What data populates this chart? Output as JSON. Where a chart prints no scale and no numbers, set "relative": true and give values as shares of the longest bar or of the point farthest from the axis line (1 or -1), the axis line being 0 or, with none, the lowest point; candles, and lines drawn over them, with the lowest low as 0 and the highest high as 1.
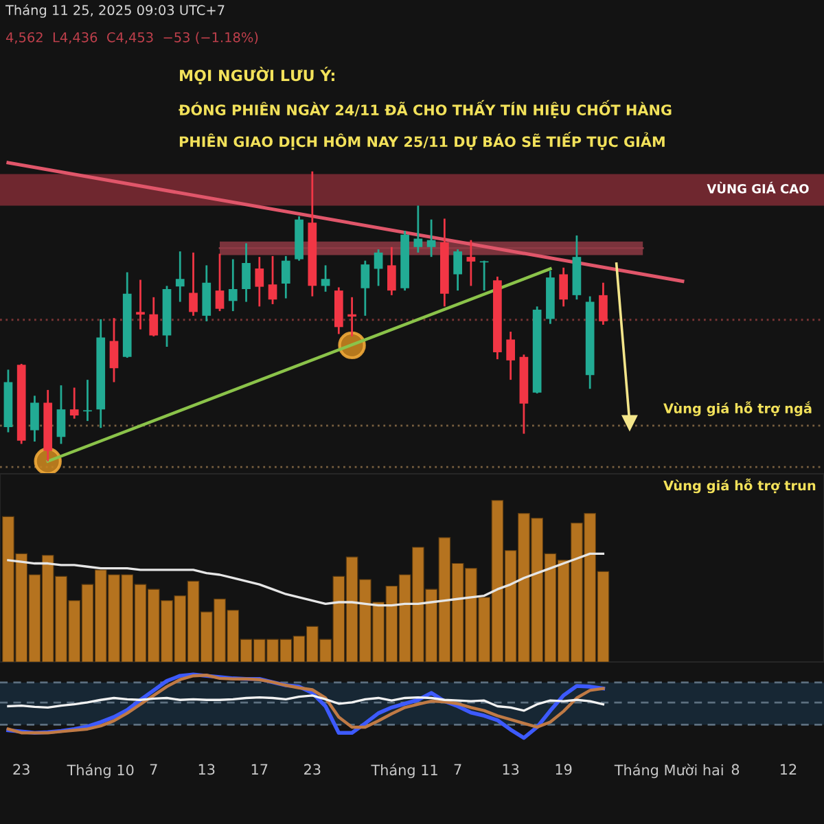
{
  "chart_data": [
    {
      "type": "candlestick",
      "title": "MỌI NGƯỜI LƯU Ý:",
      "subtitle": "ĐÓNG PHIÊN NGÀY 24/11 ĐÃ CHO THẤY TÍN HIỆU CHỐT HÀNG\nPHIÊN GIAO DỊCH HÔM NAY 25/11 DỰ BÁO SẼ TIẾP TỤC GIẢM",
      "annotations": [
        "Tháng 11 25, 2025 09:03 UTC+7",
        "4,562  L4,436  C4,453  −53 (−1.18%)"
      ],
      "relative": true,
      "tick_labels": false,
      "categories": [
        null,
        null,
        null,
        null,
        null,
        null,
        null,
        null,
        null,
        null,
        null,
        null,
        null,
        null,
        null,
        null,
        null,
        null,
        null,
        null,
        null,
        null,
        null,
        null,
        null,
        null,
        null,
        null,
        null,
        null,
        null,
        null,
        null,
        null,
        null,
        null,
        null,
        null,
        null,
        null,
        null,
        null,
        null,
        null,
        null,
        null,
        null,
        null,
        null,
        null,
        null,
        null,
        null,
        null,
        null,
        null,
        null,
        null,
        null,
        null
      ],
      "ohlc": [
        [
          0.118,
          0.316,
          0.1,
          0.273
        ],
        [
          0.333,
          0.336,
          0.06,
          0.071
        ],
        [
          0.107,
          0.226,
          0.068,
          0.202
        ],
        [
          0.202,
          0.246,
          0,
          0.036
        ],
        [
          0.084,
          0.262,
          0.06,
          0.179
        ],
        [
          0.179,
          0.254,
          0.147,
          0.158
        ],
        [
          0.172,
          0.281,
          0.139,
          0.175
        ],
        [
          0.179,
          0.49,
          0.115,
          0.427
        ],
        [
          0.415,
          0.494,
          0.273,
          0.321
        ],
        [
          0.36,
          0.652,
          0.357,
          0.578
        ],
        [
          0.515,
          0.626,
          0.455,
          0.506
        ],
        [
          0.507,
          0.566,
          0.431,
          0.434
        ],
        [
          0.434,
          0.605,
          0.395,
          0.594
        ],
        [
          0.603,
          0.724,
          0.55,
          0.629
        ],
        [
          0.581,
          0.72,
          0.502,
          0.515
        ],
        [
          0.502,
          0.676,
          0.483,
          0.616
        ],
        [
          0.589,
          0.716,
          0.518,
          0.526
        ],
        [
          0.553,
          0.697,
          0.518,
          0.594
        ],
        [
          0.594,
          0.752,
          0.55,
          0.684
        ],
        [
          0.665,
          0.705,
          0.534,
          0.602
        ],
        [
          0.61,
          0.708,
          0.542,
          0.558
        ],
        [
          0.613,
          0.708,
          0.562,
          0.692
        ],
        [
          0.697,
          0.845,
          0.692,
          0.834
        ],
        [
          0.823,
          1,
          0.569,
          0.605
        ],
        [
          0.605,
          0.676,
          0.585,
          0.629
        ],
        [
          0.589,
          0.6,
          0.439,
          0.463
        ],
        [
          0.507,
          0.566,
          0.431,
          0.499
        ],
        [
          0.597,
          0.692,
          0.502,
          0.679
        ],
        [
          0.664,
          0.731,
          0.605,
          0.72
        ],
        [
          0.676,
          0.739,
          0.573,
          0.589
        ],
        [
          0.597,
          0.795,
          0.589,
          0.782
        ],
        [
          0.739,
          0.882,
          0.72,
          0.768
        ],
        [
          0.739,
          0.834,
          0.705,
          0.763
        ],
        [
          0.755,
          0.837,
          0.534,
          0.578
        ],
        [
          0.645,
          0.731,
          0.589,
          0.724
        ],
        [
          0.705,
          0.763,
          0.605,
          0.689
        ],
        [
          0.686,
          0.692,
          0.589,
          0.689
        ],
        [
          0.624,
          0.637,
          0.352,
          0.376
        ],
        [
          0.42,
          0.447,
          0.281,
          0.348
        ],
        [
          0.36,
          0.368,
          0.095,
          0.199
        ],
        [
          0.237,
          0.534,
          0.234,
          0.523
        ],
        [
          0.491,
          0.657,
          0.474,
          0.634
        ],
        [
          0.645,
          0.668,
          0.534,
          0.558
        ],
        [
          0.573,
          0.779,
          0.558,
          0.705
        ],
        [
          0.297,
          0.569,
          0.25,
          0.55
        ],
        [
          0.573,
          0.616,
          0.471,
          0.483
        ],
        null,
        null,
        null,
        null,
        null,
        null,
        null,
        null,
        null,
        null,
        null,
        null,
        null,
        null
      ],
      "colors": [
        "#22ab94",
        "#f23645",
        "#22ab94",
        "#f23645",
        "#22ab94",
        "#f23645",
        "#22ab94",
        "#22ab94",
        "#f23645",
        "#22ab94",
        "#f23645",
        "#f23645",
        "#22ab94",
        "#22ab94",
        "#f23645",
        "#22ab94",
        "#f23645",
        "#22ab94",
        "#22ab94",
        "#f23645",
        "#f23645",
        "#22ab94",
        "#22ab94",
        "#f23645",
        "#22ab94",
        "#f23645",
        "#f23645",
        "#22ab94",
        "#22ab94",
        "#f23645",
        "#22ab94",
        "#22ab94",
        "#22ab94",
        "#f23645",
        "#22ab94",
        "#f23645",
        "#22ab94",
        "#f23645",
        "#f23645",
        "#f23645",
        "#22ab94",
        "#22ab94",
        "#f23645",
        "#22ab94",
        "#22ab94",
        "#f23645",
        null,
        null,
        null,
        null,
        null,
        null,
        null,
        null,
        null,
        null,
        null,
        null,
        null,
        null
      ],
      "bands": [
        {
          "axis": "y",
          "from": 0.882,
          "to": 0.991,
          "label": "VÙNG GIÁ CAO",
          "color": "#7a2a33"
        }
      ],
      "ref_lines": [
        {
          "axis": "y",
          "value": 0.488,
          "color": "#7a3434",
          "line_style": "dotted"
        },
        {
          "axis": "y",
          "value": 0.123,
          "label": "Vùng giá hỗ trợ ngắ",
          "color": "#7a6040",
          "line_style": "dotted"
        },
        {
          "axis": "y",
          "value": -0.02,
          "label": "Vùng giá hỗ trợ trun",
          "color": "#7a6040",
          "line_style": "dotted"
        }
      ],
      "series": [
        {
          "type": "line",
          "values": [
            null,
            null,
            null,
            null,
            null,
            null,
            null,
            null,
            null,
            null,
            null,
            null,
            null,
            null,
            null,
            null,
            0.735,
            null,
            null,
            null,
            null,
            null,
            null,
            null,
            null,
            null,
            null,
            null,
            null,
            null,
            null,
            null,
            null,
            null,
            null,
            null,
            null,
            null,
            null,
            null,
            null,
            null,
            null,
            null,
            null,
            null,
            null,
            null,
            0.735,
            null,
            null,
            null,
            null,
            null,
            null,
            null,
            null,
            null,
            null,
            null
          ],
          "upper": [
            null,
            null,
            null,
            null,
            null,
            null,
            null,
            null,
            null,
            null,
            null,
            null,
            null,
            null,
            null,
            null,
            0.758,
            null,
            null,
            null,
            null,
            null,
            null,
            null,
            null,
            null,
            null,
            null,
            null,
            null,
            null,
            null,
            null,
            null,
            null,
            null,
            null,
            null,
            null,
            null,
            null,
            null,
            null,
            null,
            null,
            null,
            null,
            null,
            0.758,
            null,
            null,
            null,
            null,
            null,
            null,
            null,
            null,
            null,
            null,
            null
          ],
          "lower": [
            null,
            null,
            null,
            null,
            null,
            null,
            null,
            null,
            null,
            null,
            null,
            null,
            null,
            null,
            null,
            null,
            0.711,
            null,
            null,
            null,
            null,
            null,
            null,
            null,
            null,
            null,
            null,
            null,
            null,
            null,
            null,
            null,
            null,
            null,
            null,
            null,
            null,
            null,
            null,
            null,
            null,
            null,
            null,
            null,
            null,
            null,
            null,
            null,
            0.711,
            null,
            null,
            null,
            null,
            null,
            null,
            null,
            null,
            null,
            null,
            null
          ],
          "color": "#8e3a44"
        },
        {
          "type": "line",
          "values": [
            1.03,
            null,
            null,
            null,
            null,
            null,
            null,
            null,
            null,
            null,
            null,
            null,
            null,
            null,
            null,
            null,
            null,
            null,
            null,
            null,
            null,
            null,
            null,
            null,
            null,
            null,
            null,
            null,
            null,
            null,
            null,
            null,
            null,
            null,
            null,
            null,
            null,
            null,
            null,
            null,
            null,
            null,
            null,
            null,
            null,
            null,
            null,
            null,
            null,
            null,
            null,
            0.621,
            null,
            null,
            null,
            null,
            null,
            null,
            null,
            null
          ],
          "color": "#e0566a"
        },
        {
          "type": "line",
          "values": [
            null,
            null,
            null,
            0,
            null,
            null,
            null,
            null,
            null,
            null,
            null,
            null,
            null,
            null,
            null,
            null,
            null,
            null,
            null,
            null,
            null,
            null,
            null,
            null,
            null,
            null,
            null,
            null,
            null,
            null,
            null,
            null,
            null,
            null,
            null,
            null,
            null,
            null,
            null,
            null,
            null,
            0.664,
            null,
            null,
            null,
            null,
            null,
            null,
            null,
            null,
            null,
            null,
            null,
            null,
            null,
            null,
            null,
            null,
            null,
            null
          ],
          "color": "#8bc34a"
        },
        {
          "type": "scatter",
          "values": [
            null,
            null,
            null,
            0,
            null,
            null,
            null,
            null,
            null,
            null,
            null,
            null,
            null,
            null,
            null,
            null,
            null,
            null,
            null,
            null,
            null,
            null,
            null,
            null,
            null,
            null,
            0.4,
            null,
            null,
            null,
            null,
            null,
            null,
            null,
            null,
            null,
            null,
            null,
            null,
            null,
            null,
            null,
            null,
            null,
            null,
            null,
            null,
            null,
            null,
            null,
            null,
            null,
            null,
            null,
            null,
            null,
            null,
            null,
            null,
            null
          ],
          "color": "#c8841f",
          "marker": "circle"
        },
        {
          "type": "line",
          "values": [
            null,
            null,
            null,
            null,
            null,
            null,
            null,
            null,
            null,
            null,
            null,
            null,
            null,
            null,
            null,
            null,
            null,
            null,
            null,
            null,
            null,
            null,
            null,
            null,
            null,
            null,
            null,
            null,
            null,
            null,
            null,
            null,
            null,
            null,
            null,
            null,
            null,
            null,
            null,
            null,
            null,
            null,
            null,
            null,
            null,
            null,
            0.682,
            0.133,
            null,
            null,
            null,
            null,
            null,
            null,
            null,
            null,
            null,
            null,
            null,
            null
          ],
          "color": "#f3e58a",
          "marker": "triangle"
        }
      ]
    },
    {
      "type": "bar",
      "relative": true,
      "tick_labels": false,
      "categories": [
        null,
        null,
        null,
        null,
        null,
        null,
        null,
        null,
        null,
        null,
        null,
        null,
        null,
        null,
        null,
        null,
        null,
        null,
        null,
        null,
        null,
        null,
        null,
        null,
        null,
        null,
        null,
        null,
        null,
        null,
        null,
        null,
        null,
        null,
        null,
        null,
        null,
        null,
        null,
        null,
        null,
        null,
        null,
        null,
        null,
        null,
        null,
        null,
        null,
        null,
        null,
        null,
        null,
        null,
        null,
        null,
        null,
        null,
        null,
        null
      ],
      "series": [
        {
          "type": "bar",
          "color": "#b5731f",
          "values": [
            0.9,
            0.67,
            0.54,
            0.66,
            0.53,
            0.38,
            0.48,
            0.57,
            0.54,
            0.54,
            0.48,
            0.45,
            0.38,
            0.41,
            0.5,
            0.31,
            0.39,
            0.32,
            0.14,
            0.14,
            0.14,
            0.14,
            0.16,
            0.22,
            0.14,
            0.53,
            0.65,
            0.51,
            0.37,
            0.47,
            0.54,
            0.71,
            0.45,
            0.77,
            0.61,
            0.58,
            0.4,
            1.0,
            0.69,
            0.92,
            0.89,
            0.67,
            0.63,
            0.86,
            0.92,
            0.56,
            null,
            null,
            null,
            null,
            null,
            null,
            null,
            null,
            null,
            null,
            null,
            null,
            null,
            null
          ]
        },
        {
          "type": "line",
          "color": "#e6e6e6",
          "values": [
            0.63,
            0.62,
            0.61,
            0.61,
            0.6,
            0.6,
            0.59,
            0.58,
            0.58,
            0.58,
            0.57,
            0.57,
            0.57,
            0.57,
            0.57,
            0.55,
            0.54,
            0.52,
            0.5,
            0.48,
            0.45,
            0.42,
            0.4,
            0.38,
            0.36,
            0.37,
            0.37,
            0.36,
            0.35,
            0.35,
            0.36,
            0.36,
            0.37,
            0.38,
            0.39,
            0.4,
            0.41,
            0.45,
            0.48,
            0.52,
            0.55,
            0.58,
            0.61,
            0.64,
            0.67,
            0.67,
            null,
            null,
            null,
            null,
            null,
            null,
            null,
            null,
            null,
            null,
            null,
            null,
            null,
            null
          ]
        }
      ]
    },
    {
      "type": "line",
      "relative": true,
      "tick_labels": "x",
      "line_style": "solid",
      "categories": [
        null,
        "23",
        null,
        null,
        null,
        null,
        null,
        "Tháng 10",
        null,
        null,
        null,
        "7",
        null,
        null,
        null,
        "13",
        null,
        null,
        null,
        "17",
        null,
        null,
        null,
        "23",
        null,
        null,
        null,
        null,
        null,
        null,
        "Tháng 11",
        null,
        null,
        null,
        "7",
        null,
        null,
        null,
        "13",
        null,
        null,
        null,
        "19",
        null,
        null,
        null,
        null,
        null,
        null,
        null,
        "Tháng Mười hai",
        null,
        null,
        null,
        null,
        "8",
        null,
        null,
        null,
        "12"
      ],
      "bands": [
        {
          "axis": "y",
          "from": 0.208,
          "to": 0.875,
          "color": "#182a38"
        }
      ],
      "ref_lines": [
        {
          "axis": "y",
          "value": 0.875,
          "color": "#5d7080",
          "line_style": "dashed"
        },
        {
          "axis": "y",
          "value": 0.558,
          "color": "#5d7080",
          "line_style": "dashed"
        },
        {
          "axis": "y",
          "value": 0.208,
          "color": "#5d7080",
          "line_style": "dashed"
        }
      ],
      "series": [
        {
          "color": "#3d5afe",
          "values": [
            0.12,
            0.1,
            0.08,
            0.09,
            0.11,
            0.14,
            0.18,
            0.25,
            0.33,
            0.44,
            0.6,
            0.75,
            0.9,
            0.98,
            1.0,
            0.98,
            0.96,
            0.94,
            0.93,
            0.93,
            0.88,
            0.83,
            0.81,
            0.71,
            0.5,
            0.08,
            0.08,
            0.23,
            0.39,
            0.48,
            0.54,
            0.6,
            0.71,
            0.58,
            0.5,
            0.4,
            0.35,
            0.28,
            0.13,
            0.0,
            0.17,
            0.43,
            0.67,
            0.82,
            0.81,
            0.78,
            null,
            null,
            null,
            null,
            null,
            null,
            null,
            null,
            null,
            null,
            null,
            null,
            null,
            null
          ]
        },
        {
          "color": "#c07a45",
          "values": [
            0.14,
            0.08,
            0.08,
            0.08,
            0.1,
            0.12,
            0.14,
            0.19,
            0.27,
            0.39,
            0.53,
            0.67,
            0.81,
            0.92,
            0.98,
            0.99,
            0.94,
            0.93,
            0.93,
            0.92,
            0.88,
            0.83,
            0.79,
            0.76,
            0.63,
            0.33,
            0.17,
            0.17,
            0.27,
            0.38,
            0.48,
            0.53,
            0.58,
            0.57,
            0.54,
            0.48,
            0.43,
            0.35,
            0.29,
            0.23,
            0.17,
            0.25,
            0.42,
            0.63,
            0.75,
            0.78,
            null,
            null,
            null,
            null,
            null,
            null,
            null,
            null,
            null,
            null,
            null,
            null,
            null,
            null
          ]
        },
        {
          "color": "#f2f2f2",
          "values": [
            0.5,
            0.51,
            0.49,
            0.48,
            0.51,
            0.53,
            0.56,
            0.6,
            0.63,
            0.61,
            0.6,
            0.62,
            0.63,
            0.6,
            0.61,
            0.6,
            0.6,
            0.61,
            0.63,
            0.64,
            0.63,
            0.61,
            0.65,
            0.67,
            0.61,
            0.54,
            0.56,
            0.61,
            0.63,
            0.59,
            0.63,
            0.64,
            0.63,
            0.6,
            0.59,
            0.58,
            0.59,
            0.5,
            0.48,
            0.43,
            0.53,
            0.59,
            0.58,
            0.6,
            0.58,
            0.53,
            null,
            null,
            null,
            null,
            null,
            null,
            null,
            null,
            null,
            null,
            null,
            null,
            null,
            null
          ]
        }
      ]
    }
  ]
}
